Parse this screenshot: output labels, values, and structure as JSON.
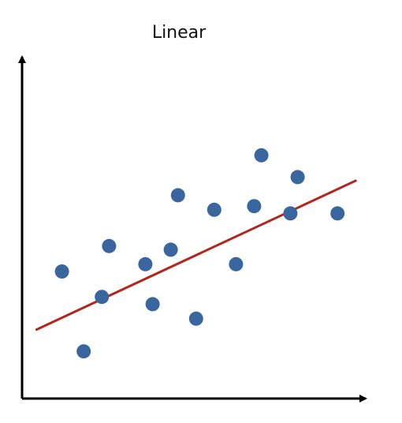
{
  "chart_data": {
    "type": "scatter",
    "title": "Linear",
    "xlabel": "",
    "ylabel": "",
    "ticks": false,
    "grid": false,
    "legend": "none",
    "xlim": [
      0,
      10
    ],
    "ylim": [
      0,
      10
    ],
    "point_color": "#3a66a0",
    "trend_color": "#b3261e",
    "axis_color": "#000000",
    "points": [
      {
        "x": 1.1,
        "y": 3.5
      },
      {
        "x": 1.7,
        "y": 1.3
      },
      {
        "x": 2.2,
        "y": 2.8
      },
      {
        "x": 2.4,
        "y": 4.2
      },
      {
        "x": 3.4,
        "y": 3.7
      },
      {
        "x": 3.6,
        "y": 2.6
      },
      {
        "x": 4.1,
        "y": 4.1
      },
      {
        "x": 4.3,
        "y": 5.6
      },
      {
        "x": 4.8,
        "y": 2.2
      },
      {
        "x": 5.3,
        "y": 5.2
      },
      {
        "x": 5.9,
        "y": 3.7
      },
      {
        "x": 6.4,
        "y": 5.3
      },
      {
        "x": 6.6,
        "y": 6.7
      },
      {
        "x": 7.4,
        "y": 5.1
      },
      {
        "x": 7.6,
        "y": 6.1
      },
      {
        "x": 8.7,
        "y": 5.1
      }
    ],
    "trendline": {
      "x": [
        0.4,
        9.2
      ],
      "y": [
        1.9,
        6.0
      ]
    }
  }
}
